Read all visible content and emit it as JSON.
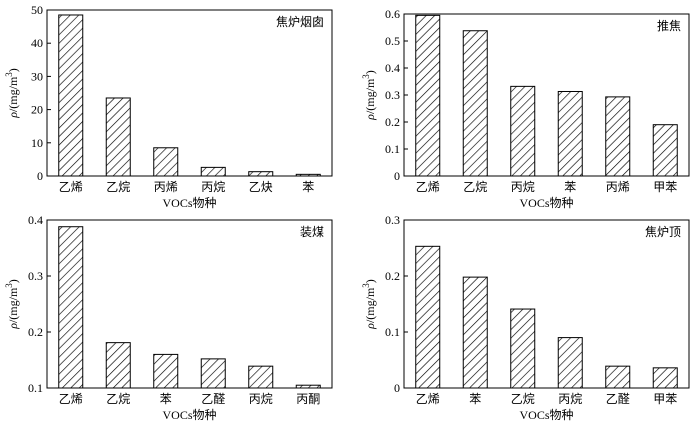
{
  "figure": {
    "unit_label": "/(mg/m",
    "unit_super": "3",
    "unit_close": ")",
    "rho": "ρ"
  },
  "chart_data": [
    {
      "type": "bar",
      "panel_label": "焦炉烟囱",
      "xlabel": "VOCs物种",
      "ylabel": "ρ/(mg/m3)",
      "ylim": [
        0,
        50
      ],
      "yticks": [
        0,
        10,
        20,
        30,
        40,
        50
      ],
      "ytick_labels": [
        "0",
        "10",
        "20",
        "30",
        "40",
        "50"
      ],
      "categories": [
        "乙烯",
        "乙烷",
        "丙烯",
        "丙烷",
        "乙炔",
        "苯"
      ],
      "values": [
        48.5,
        23.5,
        8.5,
        2.6,
        1.3,
        0.5
      ]
    },
    {
      "type": "bar",
      "panel_label": "推焦",
      "xlabel": "VOCs物种",
      "ylabel": "ρ/(mg/m3)",
      "ylim": [
        0,
        0.6
      ],
      "yticks": [
        0,
        0.1,
        0.2,
        0.3,
        0.4,
        0.5,
        0.6
      ],
      "ytick_labels": [
        "0",
        "0.1",
        "0.2",
        "0.3",
        "0.4",
        "0.5",
        "0.6"
      ],
      "categories": [
        "乙烯",
        "乙烷",
        "丙烷",
        "苯",
        "丙烯",
        "甲苯"
      ],
      "values": [
        0.595,
        0.538,
        0.332,
        0.313,
        0.293,
        0.19
      ]
    },
    {
      "type": "bar",
      "panel_label": "装煤",
      "xlabel": "VOCs物种",
      "ylabel": "ρ/(mg/m3)",
      "ylim": [
        0.1,
        0.4
      ],
      "yticks": [
        0.1,
        0.2,
        0.3,
        0.4
      ],
      "ytick_labels": [
        "0.1",
        "0.2",
        "0.3",
        "0.4"
      ],
      "categories": [
        "乙烯",
        "乙烷",
        "苯",
        "乙醛",
        "丙烷",
        "丙酮"
      ],
      "values": [
        0.388,
        0.181,
        0.16,
        0.152,
        0.139,
        0.105
      ]
    },
    {
      "type": "bar",
      "panel_label": "焦炉顶",
      "xlabel": "VOCs物种",
      "ylabel": "ρ/(mg/m3)",
      "ylim": [
        0,
        0.3
      ],
      "yticks": [
        0,
        0.1,
        0.2,
        0.3
      ],
      "ytick_labels": [
        "0",
        "0.1",
        "0.2",
        "0.3"
      ],
      "categories": [
        "乙烯",
        "苯",
        "乙烷",
        "丙烷",
        "乙醛",
        "甲苯"
      ],
      "values": [
        0.253,
        0.198,
        0.141,
        0.09,
        0.039,
        0.036
      ]
    }
  ]
}
